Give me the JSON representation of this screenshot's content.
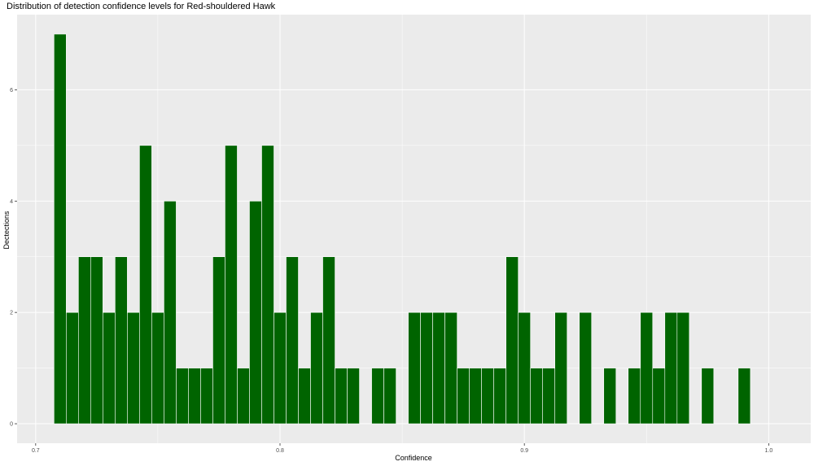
{
  "chart_data": {
    "type": "bar",
    "title": "Distribution of detection confidence levels for Red-shouldered Hawk",
    "xlabel": "Confidence",
    "ylabel": "Dectections",
    "xlim": [
      0.6924,
      1.0172
    ],
    "ylim": [
      -0.35,
      7.35
    ],
    "x_ticks": [
      "0.7",
      "0.8",
      "0.9",
      "1.0"
    ],
    "y_ticks": [
      "0",
      "2",
      "4",
      "6"
    ],
    "bin_width": 0.005,
    "bar_color": "#006400",
    "grid": true,
    "bins": [
      {
        "x": 0.71,
        "count": 7
      },
      {
        "x": 0.715,
        "count": 2
      },
      {
        "x": 0.72,
        "count": 3
      },
      {
        "x": 0.725,
        "count": 3
      },
      {
        "x": 0.73,
        "count": 2
      },
      {
        "x": 0.735,
        "count": 3
      },
      {
        "x": 0.74,
        "count": 2
      },
      {
        "x": 0.745,
        "count": 5
      },
      {
        "x": 0.75,
        "count": 2
      },
      {
        "x": 0.755,
        "count": 4
      },
      {
        "x": 0.76,
        "count": 1
      },
      {
        "x": 0.765,
        "count": 1
      },
      {
        "x": 0.77,
        "count": 1
      },
      {
        "x": 0.775,
        "count": 3
      },
      {
        "x": 0.78,
        "count": 5
      },
      {
        "x": 0.785,
        "count": 1
      },
      {
        "x": 0.79,
        "count": 4
      },
      {
        "x": 0.795,
        "count": 5
      },
      {
        "x": 0.8,
        "count": 2
      },
      {
        "x": 0.805,
        "count": 3
      },
      {
        "x": 0.81,
        "count": 1
      },
      {
        "x": 0.815,
        "count": 2
      },
      {
        "x": 0.82,
        "count": 3
      },
      {
        "x": 0.825,
        "count": 1
      },
      {
        "x": 0.83,
        "count": 1
      },
      {
        "x": 0.84,
        "count": 1
      },
      {
        "x": 0.845,
        "count": 1
      },
      {
        "x": 0.855,
        "count": 2
      },
      {
        "x": 0.86,
        "count": 2
      },
      {
        "x": 0.865,
        "count": 2
      },
      {
        "x": 0.87,
        "count": 2
      },
      {
        "x": 0.875,
        "count": 1
      },
      {
        "x": 0.88,
        "count": 1
      },
      {
        "x": 0.885,
        "count": 1
      },
      {
        "x": 0.89,
        "count": 1
      },
      {
        "x": 0.895,
        "count": 3
      },
      {
        "x": 0.9,
        "count": 2
      },
      {
        "x": 0.905,
        "count": 1
      },
      {
        "x": 0.91,
        "count": 1
      },
      {
        "x": 0.915,
        "count": 2
      },
      {
        "x": 0.925,
        "count": 2
      },
      {
        "x": 0.935,
        "count": 1
      },
      {
        "x": 0.945,
        "count": 1
      },
      {
        "x": 0.95,
        "count": 2
      },
      {
        "x": 0.955,
        "count": 1
      },
      {
        "x": 0.96,
        "count": 2
      },
      {
        "x": 0.965,
        "count": 2
      },
      {
        "x": 0.975,
        "count": 1
      },
      {
        "x": 0.99,
        "count": 1
      }
    ]
  }
}
